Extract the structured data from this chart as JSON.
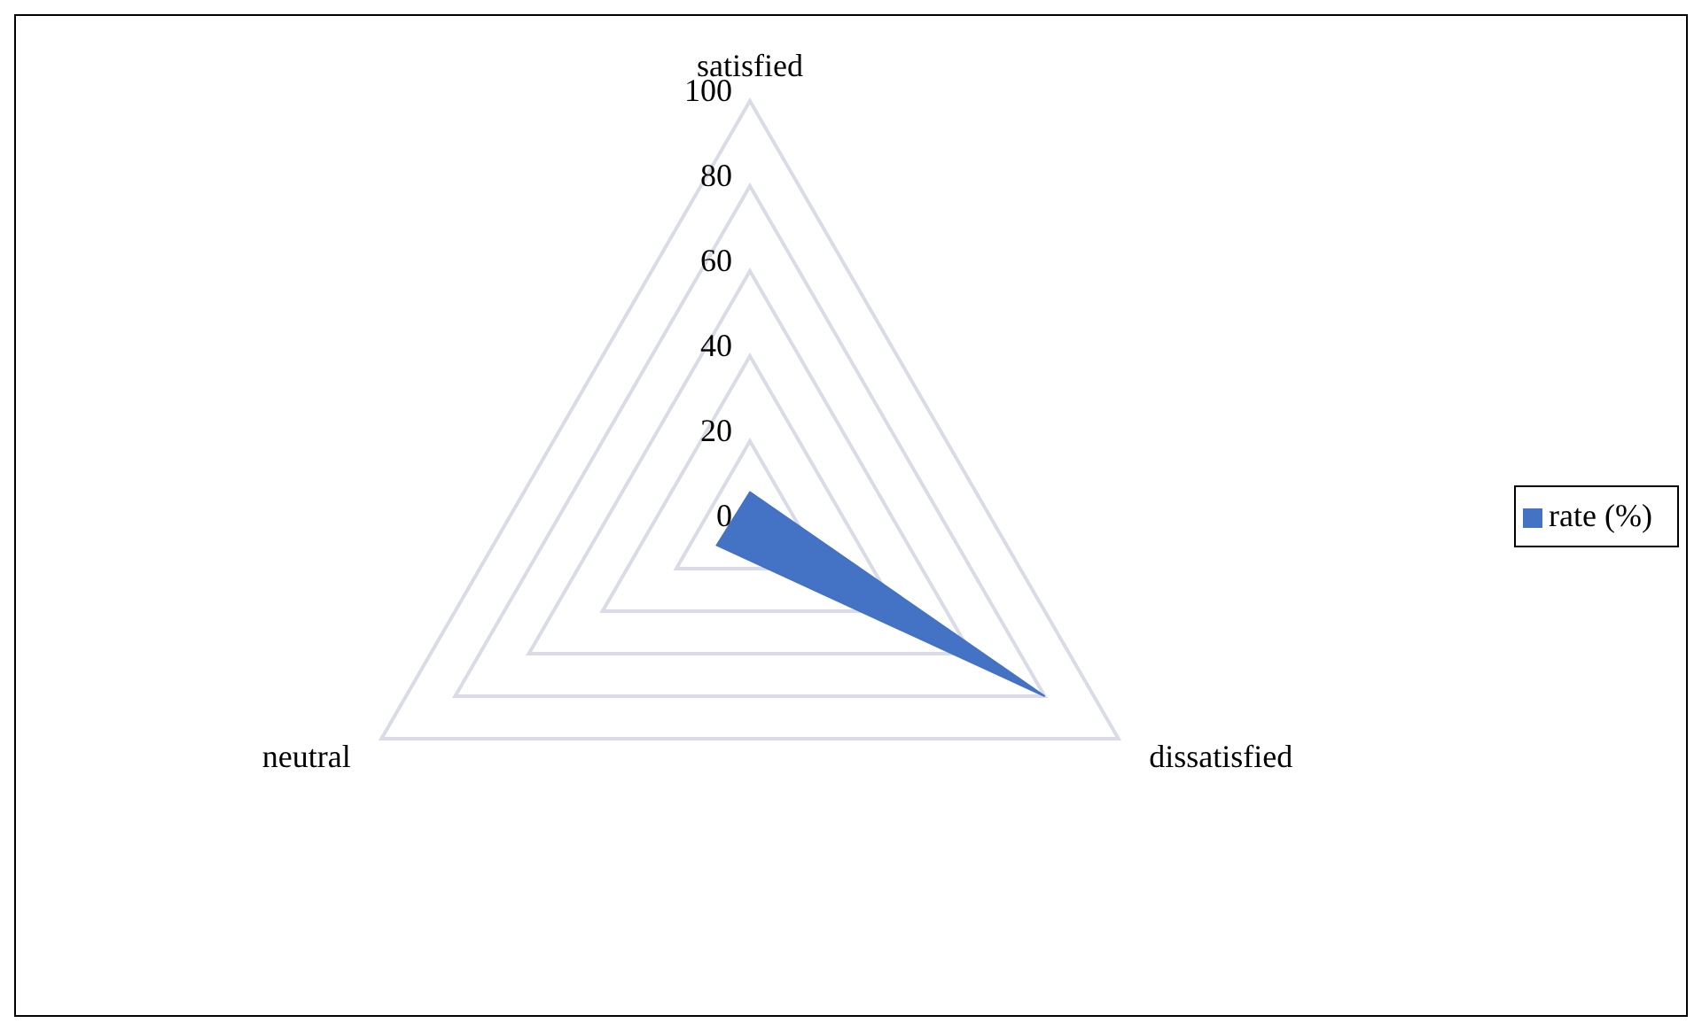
{
  "chart_data": {
    "type": "radar",
    "categories": [
      "satisfied",
      "dissatisfied",
      "neutral"
    ],
    "series": [
      {
        "name": "rate (%)",
        "color": "#4472c4",
        "values": [
          8,
          80,
          9
        ]
      }
    ],
    "ylim": [
      0,
      100
    ],
    "yticks": [
      0,
      20,
      40,
      60,
      80,
      100
    ],
    "grid": true,
    "legend": "right"
  }
}
